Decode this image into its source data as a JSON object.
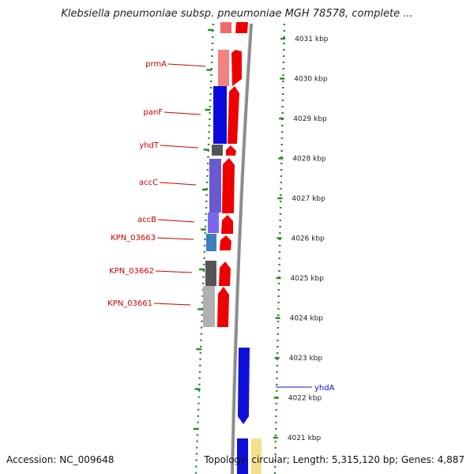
{
  "title": "Klebsiella pneumoniae subsp. pneumoniae MGH 78578, complete ...",
  "footer": {
    "accession": "Accession: NC_009648",
    "topology": "Topology: circular; Length: 5,315,120 bp; Genes: 4,887"
  },
  "scale": {
    "unit": "kbp",
    "ticks": [
      4031,
      4030,
      4029,
      4028,
      4027,
      4026,
      4025,
      4024,
      4023,
      4022,
      4021
    ]
  },
  "colors": {
    "ring_dots": "#2a8a2a",
    "label_red": "#cc0000",
    "label_blue": "#1111cc",
    "cds_red": "#ee0000",
    "cds_blue": "#1010dd"
  },
  "gene_labels": [
    {
      "name": "prmA",
      "color": "#cc0000"
    },
    {
      "name": "panF",
      "color": "#cc0000"
    },
    {
      "name": "yhdT",
      "color": "#cc0000"
    },
    {
      "name": "accC",
      "color": "#cc0000"
    },
    {
      "name": "accB",
      "color": "#cc0000"
    },
    {
      "name": "KPN_03663",
      "color": "#cc0000"
    },
    {
      "name": "KPN_03662",
      "color": "#cc0000"
    },
    {
      "name": "KPN_03661",
      "color": "#cc0000"
    },
    {
      "name": "yhdA",
      "color": "#1111cc"
    }
  ]
}
